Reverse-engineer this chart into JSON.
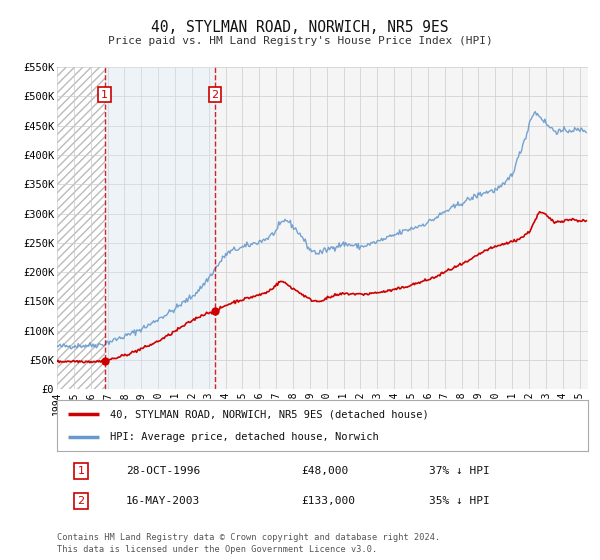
{
  "title": "40, STYLMAN ROAD, NORWICH, NR5 9ES",
  "subtitle": "Price paid vs. HM Land Registry's House Price Index (HPI)",
  "xmin": 1994.0,
  "xmax": 2025.5,
  "ymin": 0,
  "ymax": 550000,
  "yticks": [
    0,
    50000,
    100000,
    150000,
    200000,
    250000,
    300000,
    350000,
    400000,
    450000,
    500000,
    550000
  ],
  "ytick_labels": [
    "£0",
    "£50K",
    "£100K",
    "£150K",
    "£200K",
    "£250K",
    "£300K",
    "£350K",
    "£400K",
    "£450K",
    "£500K",
    "£550K"
  ],
  "xticks": [
    1994,
    1995,
    1996,
    1997,
    1998,
    1999,
    2000,
    2001,
    2002,
    2003,
    2004,
    2005,
    2006,
    2007,
    2008,
    2009,
    2010,
    2011,
    2012,
    2013,
    2014,
    2015,
    2016,
    2017,
    2018,
    2019,
    2020,
    2021,
    2022,
    2023,
    2024,
    2025
  ],
  "sale1_x": 1996.83,
  "sale1_y": 48000,
  "sale1_label": "1",
  "sale1_date": "28-OCT-1996",
  "sale1_price": "£48,000",
  "sale1_hpi": "37% ↓ HPI",
  "sale2_x": 2003.37,
  "sale2_y": 133000,
  "sale2_label": "2",
  "sale2_date": "16-MAY-2003",
  "sale2_price": "£133,000",
  "sale2_hpi": "35% ↓ HPI",
  "red_color": "#cc0000",
  "blue_color": "#6699cc",
  "shading_color": "#ddeeff",
  "hatch_color": "#cccccc",
  "legend1": "40, STYLMAN ROAD, NORWICH, NR5 9ES (detached house)",
  "legend2": "HPI: Average price, detached house, Norwich",
  "footer1": "Contains HM Land Registry data © Crown copyright and database right 2024.",
  "footer2": "This data is licensed under the Open Government Licence v3.0.",
  "bg_color": "#ffffff",
  "plot_bg_color": "#f5f5f5"
}
